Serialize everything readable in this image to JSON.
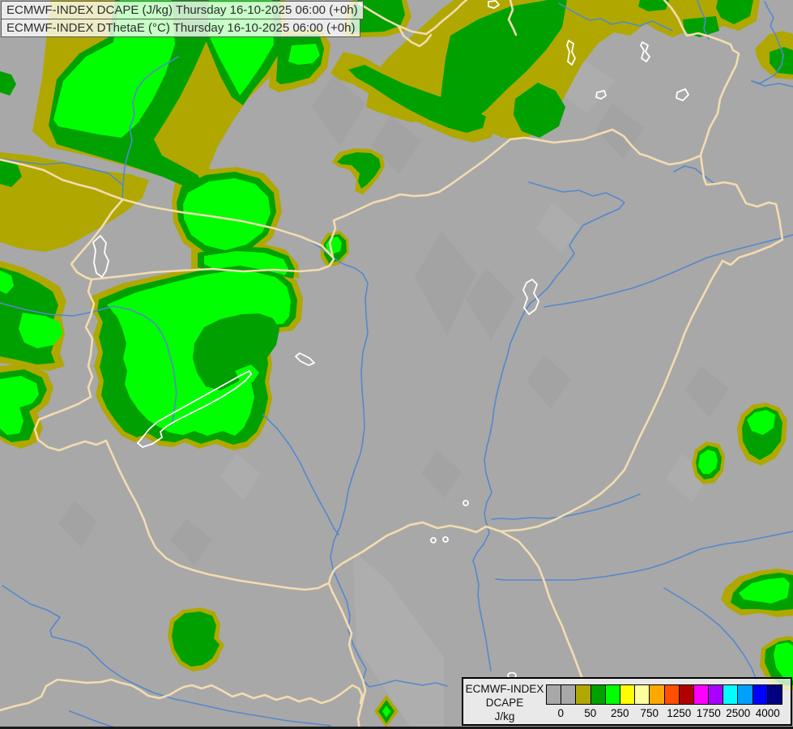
{
  "title": {
    "line1": "ECMWF-INDEX DCAPE (J/kg) Thursday 16-10-2025 06:00 (+0h)",
    "line2": "ECMWF-INDEX DThetaE (°C) Thursday 16-10-2025 06:00 (+0h)"
  },
  "legend": {
    "label_line1": "ECMWF-INDEX",
    "label_line2": "DCAPE",
    "label_line3": "J/kg",
    "tick_labels": [
      "0",
      "50",
      "250",
      "750",
      "1250",
      "1750",
      "2500",
      "4000"
    ],
    "colors": [
      "#a8a8a8",
      "#a8a8a8",
      "#b0a800",
      "#00a000",
      "#00ff00",
      "#ffff00",
      "#ffffa0",
      "#ffa800",
      "#ff5000",
      "#b00000",
      "#ff00ff",
      "#aa00ff",
      "#00ffff",
      "#00a0ff",
      "#0000ff",
      "#000080"
    ]
  },
  "map": {
    "palette": {
      "background": "#a8a8a8",
      "mottle_dark": "#9e9e9e",
      "mottle_light": "#b2b2b2",
      "dcape_0_50": "#b0a800",
      "dcape_50_250": "#00a000",
      "dcape_250_plus": "#00ff00",
      "country_border": "#f2dcb0",
      "river": "#5588cc",
      "lake_outline": "#ffffff",
      "bottom_edge": "#1a1a1a"
    }
  }
}
